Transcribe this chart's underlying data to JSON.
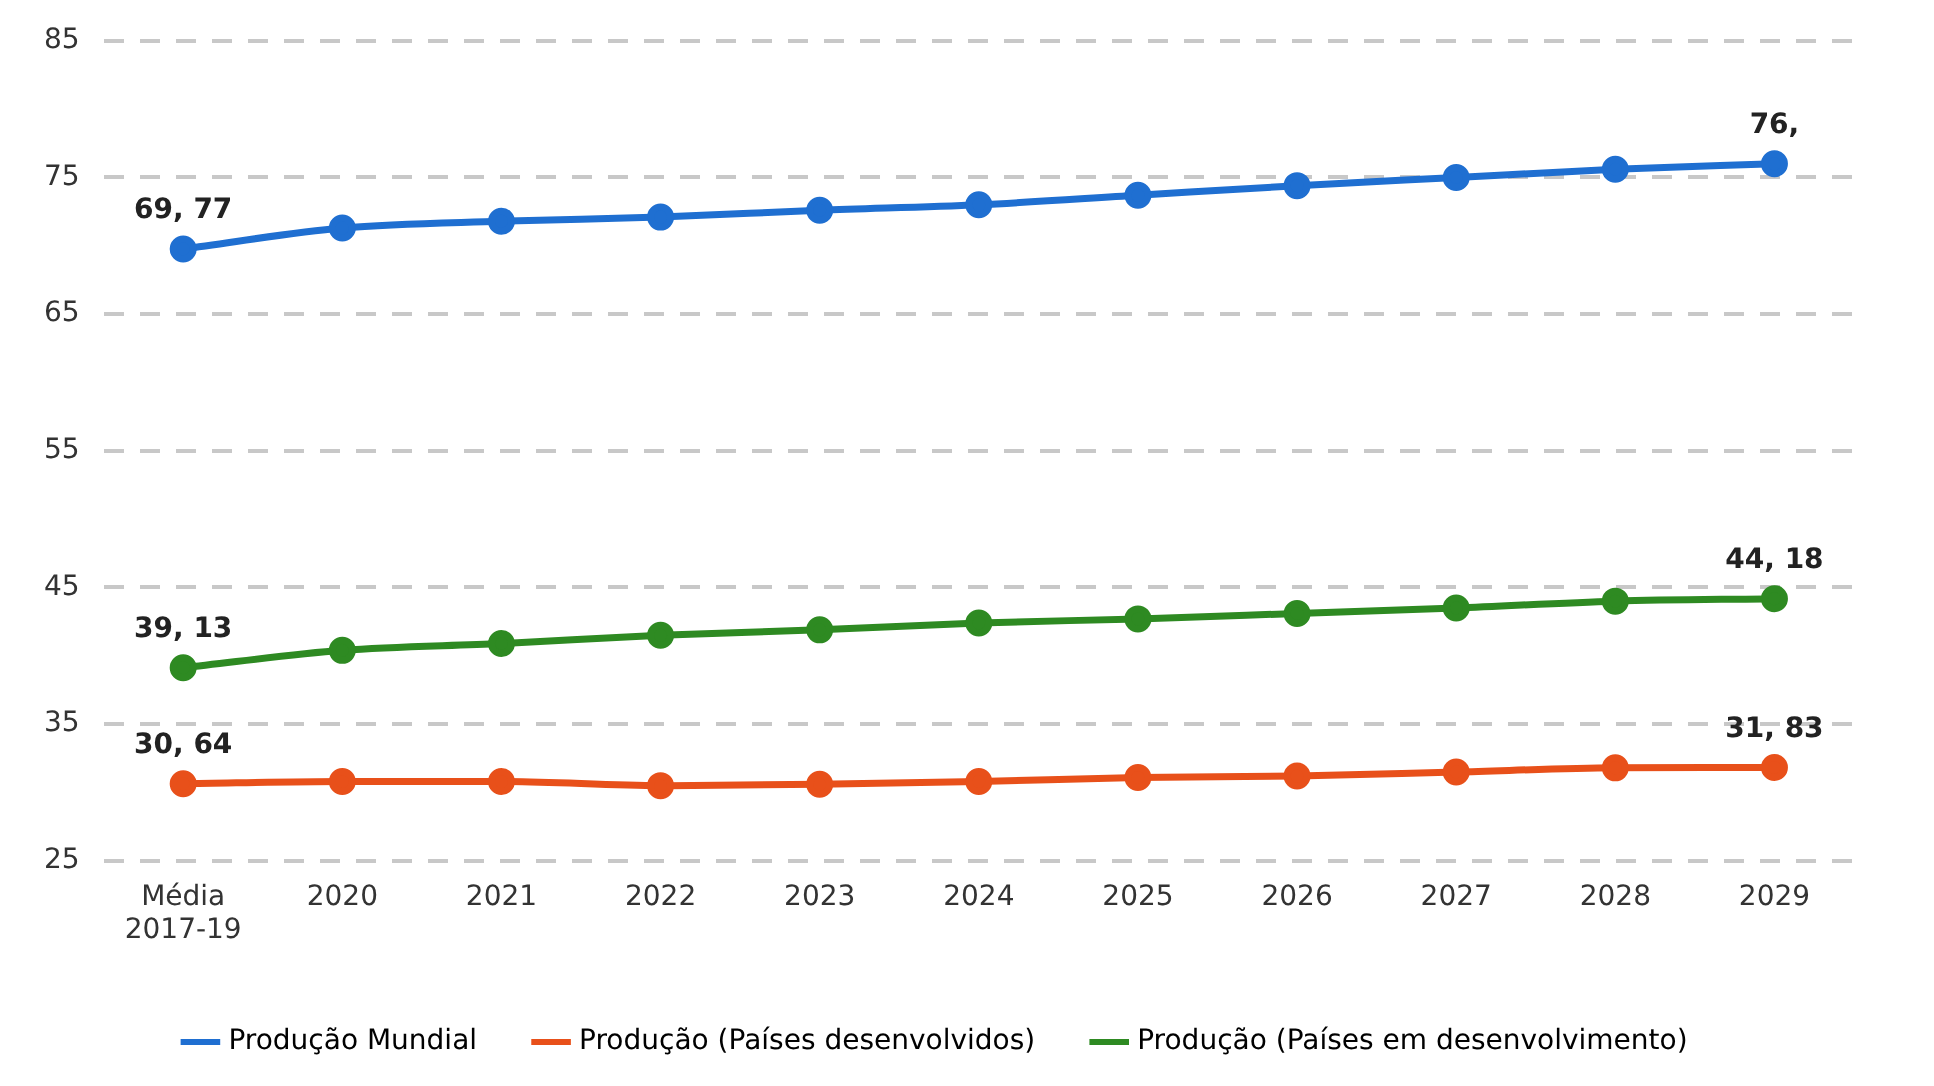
{
  "chart_data": {
    "type": "line",
    "categories": [
      "Média 2017-19",
      "2020",
      "2021",
      "2022",
      "2023",
      "2024",
      "2025",
      "2026",
      "2027",
      "2028",
      "2029"
    ],
    "series": [
      {
        "name": "Produção Mundial",
        "color": "#1f6fd1",
        "values": [
          69.77,
          71.3,
          71.8,
          72.1,
          72.6,
          73.0,
          73.7,
          74.4,
          75.0,
          75.6,
          76
        ]
      },
      {
        "name": "Produção (Países desenvolvidos)",
        "color": "#e8501a",
        "values": [
          30.64,
          30.8,
          30.8,
          30.5,
          30.6,
          30.8,
          31.1,
          31.2,
          31.5,
          31.8,
          31.83
        ]
      },
      {
        "name": "Produção (Países em desenvolvimento)",
        "color": "#2e8a22",
        "values": [
          39.13,
          40.4,
          40.9,
          41.5,
          41.9,
          42.4,
          42.7,
          43.1,
          43.5,
          44.0,
          44.18
        ]
      }
    ],
    "annotations": [
      {
        "text": "69, 77",
        "x": "Média 2017-19",
        "y": 69.77
      },
      {
        "text": "76,",
        "x": "2029",
        "y": 76
      },
      {
        "text": "30, 64",
        "x": "Média 2017-19",
        "y": 30.64
      },
      {
        "text": "31, 83",
        "x": "2029",
        "y": 31.83
      },
      {
        "text": "39, 13",
        "x": "Média 2017-19",
        "y": 39.13
      },
      {
        "text": "44, 18",
        "x": "2029",
        "y": 44.18
      }
    ],
    "ylim": [
      25,
      85
    ],
    "yticks": [
      25,
      35,
      45,
      55,
      65,
      75,
      85
    ],
    "grid": "y",
    "legend": "bottom",
    "marker": "circle",
    "line_style": "solid"
  }
}
